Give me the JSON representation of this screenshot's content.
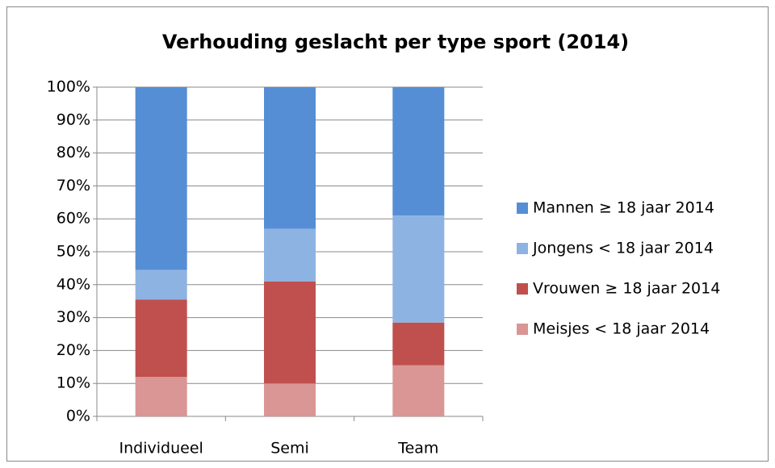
{
  "chart_data": {
    "type": "bar",
    "stacked": true,
    "title": "Verhouding geslacht per type sport (2014)",
    "categories": [
      "Individueel",
      "Semi",
      "Team"
    ],
    "series": [
      {
        "name": "Meisjes < 18 jaar 2014",
        "color": "#d99694",
        "values": [
          12,
          10,
          15.5
        ]
      },
      {
        "name": "Vrouwen ≥ 18 jaar 2014",
        "color": "#c0504d",
        "values": [
          23.5,
          31,
          13
        ]
      },
      {
        "name": "Jongens < 18 jaar 2014",
        "color": "#8db3e2",
        "values": [
          9,
          16,
          32.5
        ]
      },
      {
        "name": "Mannen ≥ 18 jaar 2014",
        "color": "#558ed5",
        "values": [
          55.5,
          43,
          39
        ]
      }
    ],
    "ylim": [
      0,
      100
    ],
    "yticks": [
      {
        "value": 0,
        "label": "0%"
      },
      {
        "value": 10,
        "label": "10%"
      },
      {
        "value": 20,
        "label": "20%"
      },
      {
        "value": 30,
        "label": "30%"
      },
      {
        "value": 40,
        "label": "40%"
      },
      {
        "value": 50,
        "label": "50%"
      },
      {
        "value": 60,
        "label": "60%"
      },
      {
        "value": 70,
        "label": "70%"
      },
      {
        "value": 80,
        "label": "80%"
      },
      {
        "value": 90,
        "label": "90%"
      },
      {
        "value": 100,
        "label": "100%"
      }
    ],
    "grid": true,
    "legend": "right"
  }
}
